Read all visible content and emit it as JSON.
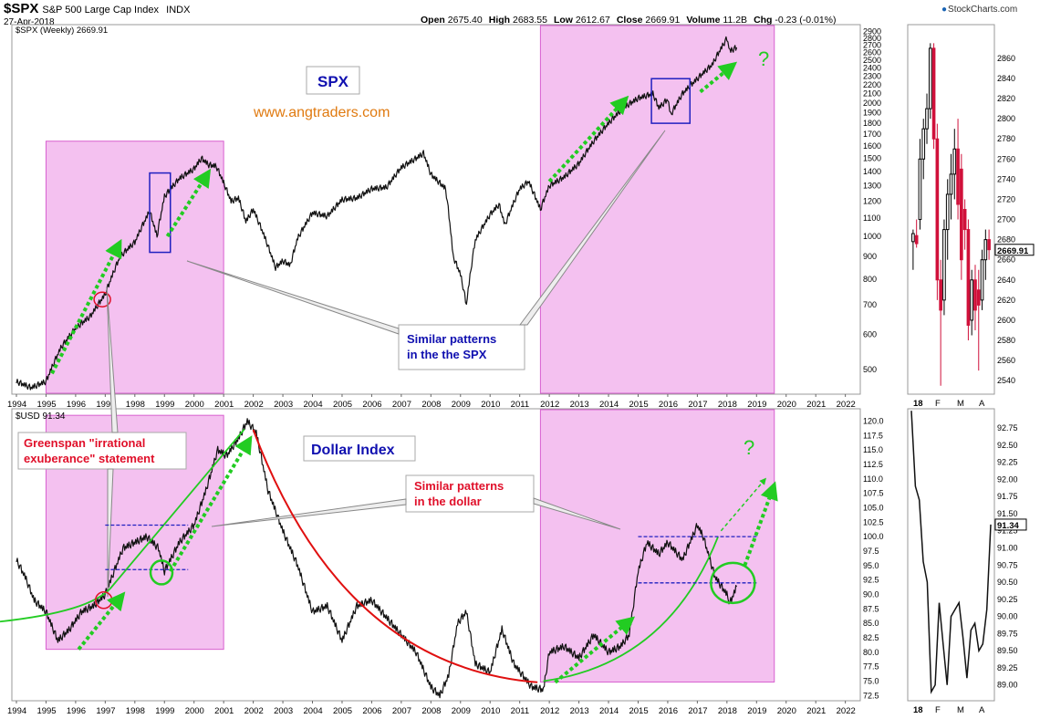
{
  "header": {
    "symbol": "$SPX",
    "name": "S&P 500 Large Cap Index",
    "exchange": "INDX",
    "date": "27-Apr-2018",
    "ohlc": [
      {
        "label": "Open",
        "value": "2675.40"
      },
      {
        "label": "High",
        "value": "2683.55"
      },
      {
        "label": "Low",
        "value": "2612.67"
      },
      {
        "label": "Close",
        "value": "2669.91"
      },
      {
        "label": "Volume",
        "value": "11.2B"
      },
      {
        "label": "Chg",
        "value": "-0.23 (-0.01%)"
      }
    ],
    "brand": "StockCharts.com"
  },
  "colors": {
    "highlight": "#f0a6ea",
    "highlight_border": "#d860d0",
    "arrow_green": "#22cc22",
    "curve_red": "#e01010",
    "box_blue": "#2020c0",
    "annot_red": "#e0102a",
    "annot_blue": "#1010b0",
    "site_orange": "#e07a10"
  },
  "chart_data": [
    {
      "type": "line",
      "panel": "top-left",
      "legend": "$SPX (Weekly) 2669.91",
      "scale": "log",
      "y_ticks": [
        500,
        600,
        700,
        800,
        900,
        1000,
        1100,
        1200,
        1300,
        1400,
        1500,
        1600,
        1700,
        1800,
        1900,
        2000,
        2100,
        2200,
        2300,
        2400,
        2500,
        2600,
        2700,
        2800,
        2900
      ],
      "x_ticks": [
        "1994",
        "1995",
        "1996",
        "1997",
        "1998",
        "1999",
        "2000",
        "2001",
        "2002",
        "2003",
        "2004",
        "2005",
        "2006",
        "2007",
        "2008",
        "2009",
        "2010",
        "2011",
        "2012",
        "2013",
        "2014",
        "2015",
        "2016",
        "2017",
        "2018",
        "2019",
        "2020",
        "2021",
        "2022"
      ],
      "x": [
        1994.0,
        1994.5,
        1995.0,
        1995.5,
        1996.0,
        1996.5,
        1997.0,
        1997.5,
        1998.0,
        1998.5,
        1998.75,
        1999.0,
        1999.5,
        2000.0,
        2000.25,
        2000.5,
        2000.75,
        2001.0,
        2001.25,
        2001.5,
        2001.75,
        2002.0,
        2002.5,
        2002.75,
        2003.0,
        2003.25,
        2003.5,
        2004.0,
        2004.5,
        2005.0,
        2005.5,
        2006.0,
        2006.5,
        2007.0,
        2007.5,
        2007.75,
        2008.0,
        2008.25,
        2008.5,
        2008.75,
        2009.0,
        2009.2,
        2009.5,
        2010.0,
        2010.3,
        2010.5,
        2011.0,
        2011.3,
        2011.7,
        2012.0,
        2012.5,
        2013.0,
        2013.5,
        2014.0,
        2014.5,
        2015.0,
        2015.5,
        2015.7,
        2016.0,
        2016.1,
        2016.5,
        2017.0,
        2017.5,
        2018.0,
        2018.1,
        2018.33
      ],
      "y": [
        470,
        455,
        470,
        560,
        620,
        660,
        740,
        900,
        970,
        1140,
        1000,
        1230,
        1350,
        1420,
        1500,
        1450,
        1440,
        1320,
        1200,
        1220,
        1080,
        1150,
        950,
        850,
        880,
        860,
        990,
        1130,
        1110,
        1210,
        1220,
        1280,
        1290,
        1430,
        1500,
        1540,
        1380,
        1330,
        1280,
        900,
        820,
        700,
        980,
        1120,
        1180,
        1060,
        1280,
        1330,
        1150,
        1300,
        1360,
        1460,
        1640,
        1800,
        1950,
        2050,
        2100,
        1950,
        2040,
        1880,
        2100,
        2270,
        2440,
        2800,
        2620,
        2669.91
      ],
      "annotations": [
        {
          "text": "SPX"
        },
        {
          "text": "www.angtraders.com"
        },
        {
          "text": "Similar patterns in the the SPX"
        },
        {
          "text": "?"
        }
      ],
      "highlight_ranges": [
        [
          1995.0,
          2001.0
        ],
        [
          2011.7,
          2019.6
        ]
      ]
    },
    {
      "type": "line",
      "panel": "bottom-left",
      "legend": "$USD 91.34",
      "y_ticks": [
        72.5,
        75.0,
        77.5,
        80.0,
        82.5,
        85.0,
        87.5,
        90.0,
        92.5,
        95.0,
        97.5,
        100.0,
        102.5,
        105.0,
        107.5,
        110.0,
        112.5,
        115.0,
        117.5,
        120.0
      ],
      "x_ticks": [
        "1994",
        "1995",
        "1996",
        "1997",
        "1998",
        "1999",
        "2000",
        "2001",
        "2002",
        "2003",
        "2004",
        "2005",
        "2006",
        "2007",
        "2008",
        "2009",
        "2010",
        "2011",
        "2012",
        "2013",
        "2014",
        "2015",
        "2016",
        "2017",
        "2018",
        "2019",
        "2020",
        "2021",
        "2022"
      ],
      "x": [
        1994.0,
        1994.3,
        1994.6,
        1995.0,
        1995.4,
        1995.8,
        1996.2,
        1996.6,
        1997.0,
        1997.3,
        1997.6,
        1998.0,
        1998.4,
        1998.8,
        1999.0,
        1999.5,
        2000.0,
        2000.4,
        2000.8,
        2001.1,
        2001.5,
        2001.8,
        2002.1,
        2002.5,
        2003.0,
        2003.5,
        2004.0,
        2004.5,
        2005.0,
        2005.5,
        2006.0,
        2006.5,
        2007.0,
        2007.5,
        2008.0,
        2008.3,
        2008.6,
        2008.9,
        2009.2,
        2009.5,
        2010.0,
        2010.4,
        2010.8,
        2011.1,
        2011.4,
        2011.8,
        2012.0,
        2012.5,
        2013.0,
        2013.5,
        2014.0,
        2014.4,
        2014.7,
        2015.0,
        2015.3,
        2015.7,
        2016.0,
        2016.5,
        2017.0,
        2017.2,
        2017.6,
        2018.0,
        2018.1,
        2018.33
      ],
      "y": [
        96.0,
        93.0,
        89.0,
        87.0,
        82.0,
        84.0,
        87.0,
        88.0,
        90.0,
        94.0,
        98.0,
        99.0,
        100.0,
        98.0,
        94.0,
        99.0,
        102.0,
        108.0,
        115.0,
        114.0,
        117.0,
        120.0,
        118.0,
        108.0,
        101.0,
        95.0,
        87.0,
        88.0,
        82.0,
        88.0,
        89.0,
        86.0,
        83.0,
        80.0,
        74.0,
        72.5,
        76.0,
        85.0,
        87.0,
        78.0,
        76.5,
        84.0,
        78.0,
        76.0,
        74.0,
        73.5,
        80.0,
        81.0,
        79.0,
        83.0,
        80.0,
        81.0,
        83.0,
        94.0,
        99.0,
        97.0,
        99.0,
        96.0,
        102.0,
        100.0,
        93.0,
        90.0,
        88.5,
        91.34
      ],
      "annotations": [
        {
          "text": "Dollar Index"
        },
        {
          "text": "Greenspan \"irrational exuberance\" statement"
        },
        {
          "text": "Similar patterns in the dollar"
        },
        {
          "text": "?"
        }
      ],
      "highlight_ranges": [
        [
          1995.0,
          2001.0
        ],
        [
          2011.7,
          2019.6
        ]
      ]
    },
    {
      "type": "bar",
      "panel": "top-right",
      "style": "candlestick-daily",
      "y_ticks": [
        2540,
        2560,
        2580,
        2600,
        2620,
        2640,
        2660,
        2680,
        2700,
        2720,
        2740,
        2760,
        2780,
        2800,
        2820,
        2840,
        2860
      ],
      "x_ticks": [
        "18",
        "F",
        "M",
        "A"
      ],
      "last_value": "2669.91",
      "candles": [
        {
          "o": 2678,
          "h": 2690,
          "l": 2650,
          "c": 2686
        },
        {
          "o": 2684,
          "h": 2700,
          "l": 2672,
          "c": 2676
        },
        {
          "o": 2700,
          "h": 2780,
          "l": 2690,
          "c": 2760
        },
        {
          "o": 2760,
          "h": 2800,
          "l": 2740,
          "c": 2790
        },
        {
          "o": 2790,
          "h": 2825,
          "l": 2775,
          "c": 2810
        },
        {
          "o": 2810,
          "h": 2875,
          "l": 2800,
          "c": 2870
        },
        {
          "o": 2870,
          "h": 2875,
          "l": 2770,
          "c": 2780
        },
        {
          "o": 2780,
          "h": 2795,
          "l": 2620,
          "c": 2640
        },
        {
          "o": 2640,
          "h": 2660,
          "l": 2535,
          "c": 2610
        },
        {
          "o": 2620,
          "h": 2700,
          "l": 2605,
          "c": 2690
        },
        {
          "o": 2690,
          "h": 2740,
          "l": 2660,
          "c": 2725
        },
        {
          "o": 2725,
          "h": 2765,
          "l": 2700,
          "c": 2745
        },
        {
          "o": 2745,
          "h": 2790,
          "l": 2720,
          "c": 2770
        },
        {
          "o": 2770,
          "h": 2800,
          "l": 2700,
          "c": 2715
        },
        {
          "o": 2750,
          "h": 2765,
          "l": 2640,
          "c": 2660
        },
        {
          "o": 2710,
          "h": 2720,
          "l": 2670,
          "c": 2690
        },
        {
          "o": 2690,
          "h": 2700,
          "l": 2580,
          "c": 2595
        },
        {
          "o": 2600,
          "h": 2650,
          "l": 2585,
          "c": 2640
        },
        {
          "o": 2640,
          "h": 2655,
          "l": 2590,
          "c": 2610
        },
        {
          "o": 2630,
          "h": 2650,
          "l": 2550,
          "c": 2615
        },
        {
          "o": 2620,
          "h": 2670,
          "l": 2610,
          "c": 2660
        },
        {
          "o": 2660,
          "h": 2690,
          "l": 2640,
          "c": 2680
        },
        {
          "o": 2680,
          "h": 2690,
          "l": 2660,
          "c": 2670
        }
      ]
    },
    {
      "type": "line",
      "panel": "bottom-right",
      "y_ticks": [
        89.0,
        89.25,
        89.5,
        89.75,
        90.0,
        90.25,
        90.5,
        90.75,
        91.0,
        91.25,
        91.5,
        91.75,
        92.0,
        92.25,
        92.5,
        92.75
      ],
      "x_ticks": [
        "18",
        "F",
        "M",
        "A"
      ],
      "last_value": "91.34",
      "values": [
        93.0,
        91.9,
        91.7,
        90.8,
        90.5,
        88.9,
        89.0,
        90.2,
        89.6,
        89.0,
        90.0,
        90.1,
        90.2,
        89.7,
        89.1,
        89.8,
        89.9,
        89.5,
        89.6,
        90.1,
        91.34
      ]
    }
  ]
}
